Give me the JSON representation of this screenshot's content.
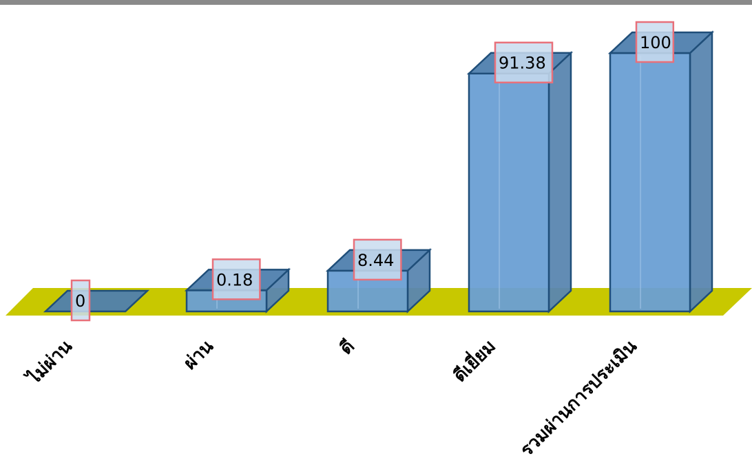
{
  "chart_data": {
    "type": "bar",
    "categories": [
      "ไม่ผ่าน",
      "ผ่าน",
      "ดี",
      "ดีเยี่ยม",
      "รวมผ่านการประเมิน"
    ],
    "values": [
      0,
      0.18,
      8.44,
      91.38,
      100
    ],
    "data_labels": [
      "0",
      "0.18",
      "8.44",
      "91.38",
      "100"
    ],
    "title": "",
    "xlabel": "",
    "ylabel": "",
    "ylim": [
      0,
      100
    ],
    "grid": false,
    "legend": "none",
    "style": "3d-column"
  },
  "colors": {
    "bar_front": "#6a9fd4",
    "bar_side": "#5a86b0",
    "bar_top": "#4f7fae",
    "bar_edge": "#1f4e79",
    "floor": "#c8c800",
    "label_border": "#e8707a",
    "top_bar": "#8a8a8a"
  }
}
